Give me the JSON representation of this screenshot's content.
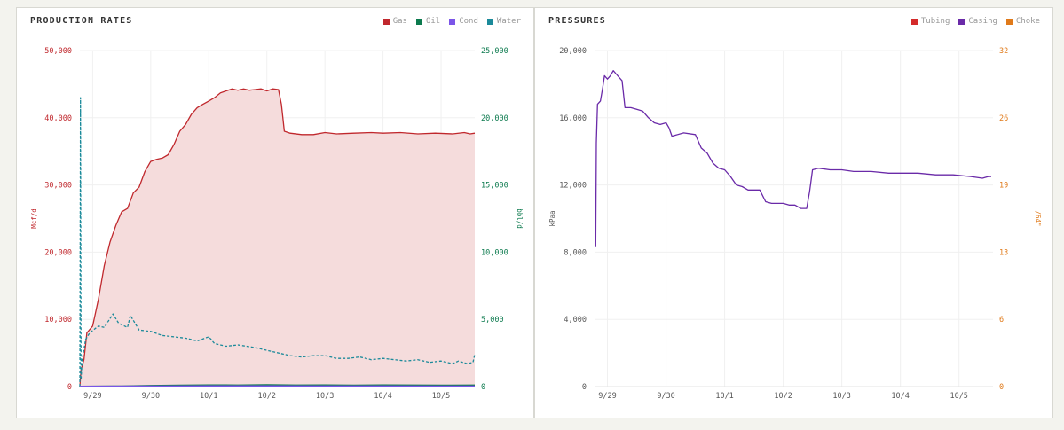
{
  "colors": {
    "gas": "#c0282d",
    "oil": "#0c7a4e",
    "cond": "#7b55e8",
    "water": "#1b8a9a",
    "tubing": "#d42a2a",
    "casing": "#6a2aa8",
    "choke": "#e07a1a",
    "gas_fill": "#f5dcdc",
    "grid": "#f0f0f0",
    "axis_text": "#555555"
  },
  "chart_data": [
    {
      "type": "area",
      "title": "PRODUCTION RATES",
      "legend": [
        {
          "label": "Gas",
          "color": "#c0282d"
        },
        {
          "label": "Oil",
          "color": "#0c7a4e"
        },
        {
          "label": "Cond",
          "color": "#7b55e8"
        },
        {
          "label": "Water",
          "color": "#1b8a9a"
        }
      ],
      "ylabel_left": "Mcf/d",
      "ylabel_right": "bbl/d",
      "ylim_left": [
        0,
        50000
      ],
      "ylim_right": [
        0,
        25000
      ],
      "yticks_left": [
        "0",
        "10,000",
        "20,000",
        "30,000",
        "40,000",
        "50,000"
      ],
      "yticks_right": [
        "0",
        "5,000",
        "10,000",
        "15,000",
        "20,000",
        "25,000"
      ],
      "xlim": [
        -0.22,
        6.58
      ],
      "xticks": [
        {
          "x": 0,
          "label": "9/29"
        },
        {
          "x": 1,
          "label": "9/30"
        },
        {
          "x": 2,
          "label": "10/1"
        },
        {
          "x": 3,
          "label": "10/2"
        },
        {
          "x": 4,
          "label": "10/3"
        },
        {
          "x": 5,
          "label": "10/4"
        },
        {
          "x": 6,
          "label": "10/5"
        }
      ],
      "series": [
        {
          "name": "Gas",
          "axis": "left",
          "style": "area",
          "points": [
            [
              -0.22,
              0
            ],
            [
              -0.2,
              2500
            ],
            [
              -0.15,
              4000
            ],
            [
              -0.1,
              8000
            ],
            [
              0,
              9000
            ],
            [
              0.1,
              13000
            ],
            [
              0.2,
              18000
            ],
            [
              0.3,
              21500
            ],
            [
              0.4,
              24000
            ],
            [
              0.5,
              26000
            ],
            [
              0.6,
              26500
            ],
            [
              0.7,
              28800
            ],
            [
              0.8,
              29700
            ],
            [
              0.9,
              32000
            ],
            [
              1.0,
              33500
            ],
            [
              1.1,
              33800
            ],
            [
              1.2,
              34000
            ],
            [
              1.3,
              34500
            ],
            [
              1.4,
              36000
            ],
            [
              1.5,
              38000
            ],
            [
              1.6,
              39000
            ],
            [
              1.7,
              40500
            ],
            [
              1.8,
              41500
            ],
            [
              1.9,
              42000
            ],
            [
              2.0,
              42500
            ],
            [
              2.1,
              43000
            ],
            [
              2.2,
              43700
            ],
            [
              2.3,
              44000
            ],
            [
              2.4,
              44300
            ],
            [
              2.5,
              44100
            ],
            [
              2.6,
              44300
            ],
            [
              2.7,
              44100
            ],
            [
              2.8,
              44200
            ],
            [
              2.9,
              44300
            ],
            [
              3.0,
              44000
            ],
            [
              3.1,
              44300
            ],
            [
              3.2,
              44200
            ],
            [
              3.25,
              42000
            ],
            [
              3.3,
              38000
            ],
            [
              3.4,
              37700
            ],
            [
              3.6,
              37500
            ],
            [
              3.8,
              37500
            ],
            [
              4.0,
              37800
            ],
            [
              4.2,
              37600
            ],
            [
              4.5,
              37700
            ],
            [
              4.8,
              37800
            ],
            [
              5.0,
              37700
            ],
            [
              5.3,
              37800
            ],
            [
              5.6,
              37600
            ],
            [
              5.9,
              37700
            ],
            [
              6.2,
              37600
            ],
            [
              6.4,
              37800
            ],
            [
              6.5,
              37600
            ],
            [
              6.58,
              37700
            ]
          ]
        },
        {
          "name": "Water",
          "axis": "right",
          "style": "dashed",
          "points": [
            [
              -0.22,
              0
            ],
            [
              -0.21,
              21500
            ],
            [
              -0.2,
              500
            ],
            [
              -0.18,
              2000
            ],
            [
              -0.12,
              3500
            ],
            [
              -0.05,
              4000
            ],
            [
              0.1,
              4500
            ],
            [
              0.2,
              4400
            ],
            [
              0.35,
              5400
            ],
            [
              0.45,
              4700
            ],
            [
              0.6,
              4400
            ],
            [
              0.65,
              5300
            ],
            [
              0.8,
              4200
            ],
            [
              1.0,
              4100
            ],
            [
              1.2,
              3800
            ],
            [
              1.4,
              3700
            ],
            [
              1.6,
              3600
            ],
            [
              1.8,
              3400
            ],
            [
              2.0,
              3700
            ],
            [
              2.1,
              3200
            ],
            [
              2.3,
              3000
            ],
            [
              2.5,
              3100
            ],
            [
              2.8,
              2900
            ],
            [
              3.0,
              2700
            ],
            [
              3.2,
              2500
            ],
            [
              3.4,
              2300
            ],
            [
              3.6,
              2200
            ],
            [
              3.8,
              2300
            ],
            [
              4.0,
              2300
            ],
            [
              4.2,
              2100
            ],
            [
              4.4,
              2100
            ],
            [
              4.6,
              2200
            ],
            [
              4.8,
              2000
            ],
            [
              5.0,
              2100
            ],
            [
              5.2,
              2000
            ],
            [
              5.4,
              1900
            ],
            [
              5.6,
              2000
            ],
            [
              5.8,
              1800
            ],
            [
              6.0,
              1900
            ],
            [
              6.2,
              1700
            ],
            [
              6.3,
              1900
            ],
            [
              6.45,
              1700
            ],
            [
              6.55,
              1800
            ],
            [
              6.58,
              2400
            ]
          ]
        },
        {
          "name": "Oil",
          "axis": "right",
          "style": "line",
          "points": [
            [
              -0.22,
              0
            ],
            [
              0.5,
              20
            ],
            [
              1.0,
              60
            ],
            [
              1.5,
              80
            ],
            [
              2.0,
              100
            ],
            [
              2.5,
              90
            ],
            [
              3.0,
              110
            ],
            [
              3.5,
              90
            ],
            [
              4.0,
              100
            ],
            [
              4.5,
              80
            ],
            [
              5.0,
              100
            ],
            [
              5.5,
              90
            ],
            [
              6.0,
              80
            ],
            [
              6.58,
              90
            ]
          ]
        },
        {
          "name": "Cond",
          "axis": "right",
          "style": "line",
          "points": [
            [
              -0.22,
              0
            ],
            [
              1.0,
              20
            ],
            [
              2.0,
              30
            ],
            [
              3.0,
              30
            ],
            [
              4.0,
              25
            ],
            [
              5.0,
              25
            ],
            [
              6.0,
              20
            ],
            [
              6.58,
              20
            ]
          ]
        }
      ]
    },
    {
      "type": "line",
      "title": "PRESSURES",
      "legend": [
        {
          "label": "Tubing",
          "color": "#d42a2a"
        },
        {
          "label": "Casing",
          "color": "#6a2aa8"
        },
        {
          "label": "Choke",
          "color": "#e07a1a"
        }
      ],
      "ylabel_left": "kPaa",
      "ylabel_right": "/64\"",
      "ylim_left": [
        0,
        20000
      ],
      "ylim_right": [
        0,
        32
      ],
      "yticks_left": [
        "0",
        "4,000",
        "8,000",
        "12,000",
        "16,000",
        "20,000"
      ],
      "yticks_right": [
        "0",
        "6",
        "13",
        "19",
        "26",
        "32"
      ],
      "xlim": [
        -0.22,
        6.58
      ],
      "xticks": [
        {
          "x": 0,
          "label": "9/29"
        },
        {
          "x": 1,
          "label": "9/30"
        },
        {
          "x": 2,
          "label": "10/1"
        },
        {
          "x": 3,
          "label": "10/2"
        },
        {
          "x": 4,
          "label": "10/3"
        },
        {
          "x": 5,
          "label": "10/4"
        },
        {
          "x": 6,
          "label": "10/5"
        }
      ],
      "series": [
        {
          "name": "Casing",
          "axis": "left",
          "style": "line",
          "points": [
            [
              -0.2,
              8300
            ],
            [
              -0.19,
              14500
            ],
            [
              -0.17,
              16800
            ],
            [
              -0.12,
              17000
            ],
            [
              -0.08,
              17800
            ],
            [
              -0.05,
              18500
            ],
            [
              0.0,
              18300
            ],
            [
              0.05,
              18500
            ],
            [
              0.1,
              18800
            ],
            [
              0.15,
              18600
            ],
            [
              0.2,
              18400
            ],
            [
              0.25,
              18200
            ],
            [
              0.3,
              16600
            ],
            [
              0.4,
              16600
            ],
            [
              0.5,
              16500
            ],
            [
              0.6,
              16400
            ],
            [
              0.7,
              16000
            ],
            [
              0.8,
              15700
            ],
            [
              0.9,
              15600
            ],
            [
              1.0,
              15700
            ],
            [
              1.05,
              15400
            ],
            [
              1.1,
              14900
            ],
            [
              1.3,
              15100
            ],
            [
              1.5,
              15000
            ],
            [
              1.6,
              14200
            ],
            [
              1.7,
              13900
            ],
            [
              1.8,
              13300
            ],
            [
              1.9,
              13000
            ],
            [
              2.0,
              12900
            ],
            [
              2.1,
              12500
            ],
            [
              2.2,
              12000
            ],
            [
              2.3,
              11900
            ],
            [
              2.4,
              11700
            ],
            [
              2.6,
              11700
            ],
            [
              2.7,
              11000
            ],
            [
              2.8,
              10900
            ],
            [
              3.0,
              10900
            ],
            [
              3.1,
              10800
            ],
            [
              3.2,
              10800
            ],
            [
              3.3,
              10600
            ],
            [
              3.4,
              10600
            ],
            [
              3.45,
              11600
            ],
            [
              3.5,
              12900
            ],
            [
              3.6,
              13000
            ],
            [
              3.8,
              12900
            ],
            [
              4.0,
              12900
            ],
            [
              4.2,
              12800
            ],
            [
              4.5,
              12800
            ],
            [
              4.8,
              12700
            ],
            [
              5.0,
              12700
            ],
            [
              5.3,
              12700
            ],
            [
              5.6,
              12600
            ],
            [
              5.9,
              12600
            ],
            [
              6.2,
              12500
            ],
            [
              6.4,
              12400
            ],
            [
              6.5,
              12500
            ],
            [
              6.55,
              12500
            ]
          ]
        }
      ]
    }
  ]
}
